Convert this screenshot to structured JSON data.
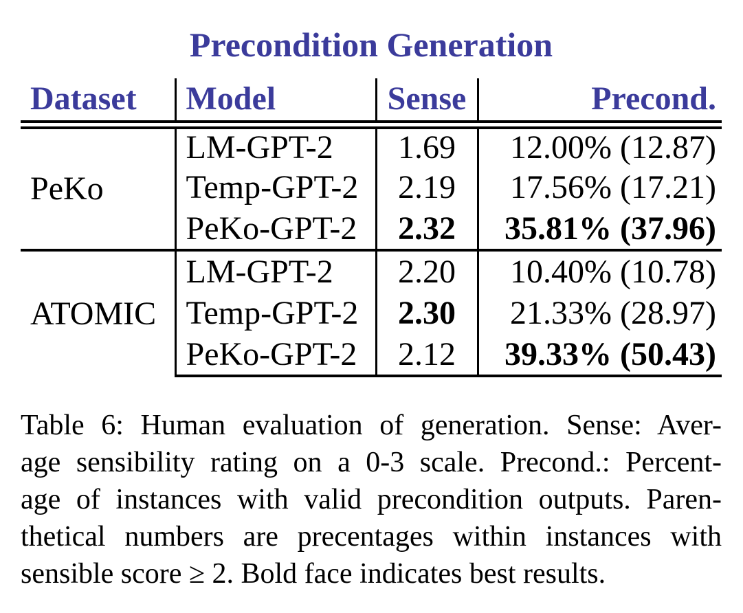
{
  "title": "Precondition Generation",
  "table": {
    "columns": [
      "Dataset",
      "Model",
      "Sense",
      "Precond."
    ],
    "groups": [
      {
        "dataset": "PeKo",
        "rows": [
          {
            "model": "LM-GPT-2",
            "sense": "1.69",
            "sense_bold": false,
            "precond": "12.00% (12.87)",
            "precond_bold": false
          },
          {
            "model": "Temp-GPT-2",
            "sense": "2.19",
            "sense_bold": false,
            "precond": "17.56% (17.21)",
            "precond_bold": false
          },
          {
            "model": "PeKo-GPT-2",
            "sense": "2.32",
            "sense_bold": true,
            "precond": "35.81% (37.96)",
            "precond_bold": true
          }
        ]
      },
      {
        "dataset": "ATOMIC",
        "rows": [
          {
            "model": "LM-GPT-2",
            "sense": "2.20",
            "sense_bold": false,
            "precond": "10.40% (10.78)",
            "precond_bold": false
          },
          {
            "model": "Temp-GPT-2",
            "sense": "2.30",
            "sense_bold": true,
            "precond": "21.33% (28.97)",
            "precond_bold": false
          },
          {
            "model": "PeKo-GPT-2",
            "sense": "2.12",
            "sense_bold": false,
            "precond": "39.33% (50.43)",
            "precond_bold": true
          }
        ]
      }
    ]
  },
  "caption": {
    "lines": [
      "Table 6: Human evaluation of generation. Sense: Aver-",
      "age sensibility rating on a 0-3 scale. Precond.: Percent-",
      "age of instances with valid precondition outputs. Paren-",
      "thetical numbers are precentages within instances with",
      "sensible score ≥ 2. Bold face indicates best results."
    ]
  },
  "colors": {
    "header_blue": "#3B3B9B",
    "body_text": "#000000",
    "background": "#FFFFFF"
  }
}
